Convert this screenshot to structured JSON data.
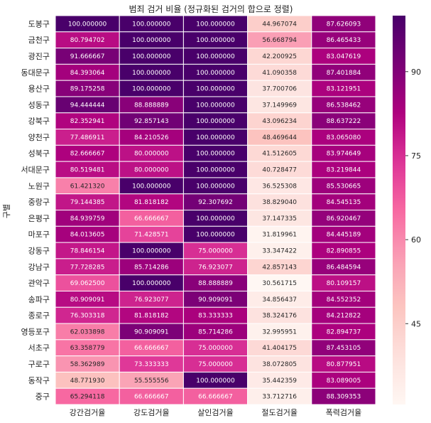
{
  "chart_data": {
    "type": "heatmap",
    "title": "범죄 검거 비율 (정규화된 검거의 합으로 정렬)",
    "ylabel": "구별",
    "xlabel": "",
    "columns": [
      "강간검거율",
      "강도검거율",
      "살인검거율",
      "절도검거율",
      "폭력검거율"
    ],
    "rows": [
      "도봉구",
      "금천구",
      "광진구",
      "동대문구",
      "용산구",
      "성동구",
      "강북구",
      "양천구",
      "성북구",
      "서대문구",
      "노원구",
      "중랑구",
      "은평구",
      "마포구",
      "강동구",
      "강남구",
      "관악구",
      "송파구",
      "종로구",
      "영등포구",
      "서초구",
      "구로구",
      "동작구",
      "중구"
    ],
    "values": [
      [
        100.0,
        100.0,
        100.0,
        44.967074,
        87.626093
      ],
      [
        80.794702,
        100.0,
        100.0,
        56.668794,
        86.465433
      ],
      [
        91.666667,
        100.0,
        100.0,
        42.200925,
        83.047619
      ],
      [
        84.393064,
        100.0,
        100.0,
        41.090358,
        87.401884
      ],
      [
        89.175258,
        100.0,
        100.0,
        37.700706,
        83.121951
      ],
      [
        94.444444,
        88.888889,
        100.0,
        37.149969,
        86.538462
      ],
      [
        82.352941,
        92.857143,
        100.0,
        43.096234,
        88.637222
      ],
      [
        77.486911,
        84.210526,
        100.0,
        48.469644,
        83.06508
      ],
      [
        82.666667,
        80.0,
        100.0,
        41.512605,
        83.974649
      ],
      [
        80.519481,
        80.0,
        100.0,
        40.728477,
        83.219844
      ],
      [
        61.42132,
        100.0,
        100.0,
        36.525308,
        85.530665
      ],
      [
        79.144385,
        81.818182,
        92.307692,
        38.82904,
        84.545135
      ],
      [
        84.939759,
        66.666667,
        100.0,
        37.147335,
        86.920467
      ],
      [
        84.013605,
        71.428571,
        100.0,
        31.819961,
        84.445189
      ],
      [
        78.846154,
        100.0,
        75.0,
        33.347422,
        82.890855
      ],
      [
        77.728285,
        85.714286,
        76.923077,
        42.857143,
        86.484594
      ],
      [
        69.0625,
        100.0,
        88.888889,
        30.561715,
        80.109157
      ],
      [
        80.909091,
        76.923077,
        90.909091,
        34.856437,
        84.552352
      ],
      [
        76.303318,
        81.818182,
        83.333333,
        38.324176,
        84.212822
      ],
      [
        62.033898,
        90.909091,
        85.714286,
        32.995951,
        82.894737
      ],
      [
        63.358779,
        66.666667,
        75.0,
        41.404175,
        87.453105
      ],
      [
        58.362989,
        73.333333,
        75.0,
        38.072805,
        80.877951
      ],
      [
        48.77193,
        55.555556,
        100.0,
        35.442359,
        83.089005
      ],
      [
        65.294118,
        66.666667,
        66.666667,
        33.712716,
        88.309353
      ]
    ],
    "colorbar": {
      "ticks": [
        45,
        60,
        75,
        90
      ],
      "min": 30.561715,
      "max": 100.0
    },
    "colormap": "RdPu",
    "cell_border_color": "#ffffff"
  }
}
